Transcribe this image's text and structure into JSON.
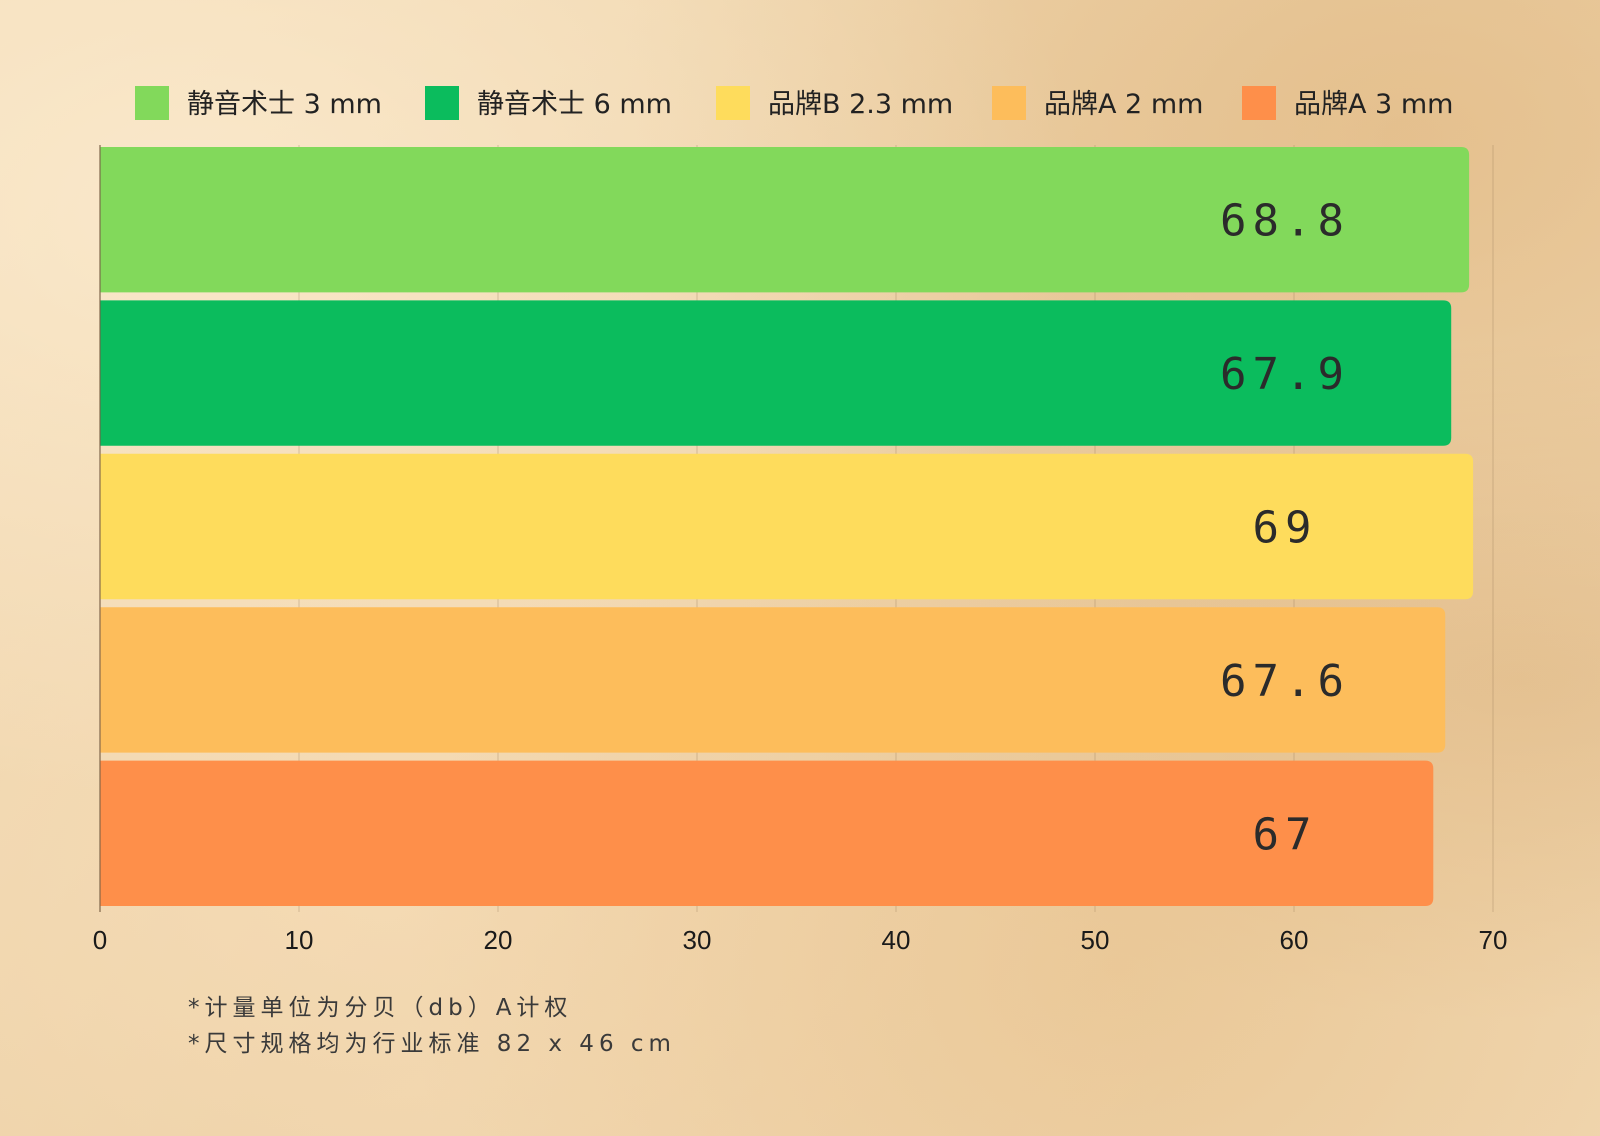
{
  "chart_data": {
    "type": "bar",
    "orientation": "horizontal",
    "xlim": [
      0,
      70
    ],
    "x_ticks": [
      "0",
      "10",
      "20",
      "30",
      "40",
      "50",
      "60",
      "70"
    ],
    "grid": true,
    "legend_position": "top",
    "series": [
      {
        "name": "静音术士 3 mm",
        "value": 68.8,
        "label": "68.8",
        "color": "#82d95b"
      },
      {
        "name": "静音术士 6 mm",
        "value": 67.9,
        "label": "67.9",
        "color": "#0bbc5d"
      },
      {
        "name": "品牌B 2.3 mm",
        "value": 69,
        "label": "69",
        "color": "#fedc5c"
      },
      {
        "name": "品牌A 2 mm",
        "value": 67.6,
        "label": "67.6",
        "color": "#fdbd5b"
      },
      {
        "name": "品牌A 3 mm",
        "value": 67,
        "label": "67",
        "color": "#fe8f4a"
      }
    ]
  },
  "footnotes": {
    "line1": "*计量单位为分贝（db）A计权",
    "line2": "*尺寸规格均为行业标准 82 x 46 cm"
  }
}
